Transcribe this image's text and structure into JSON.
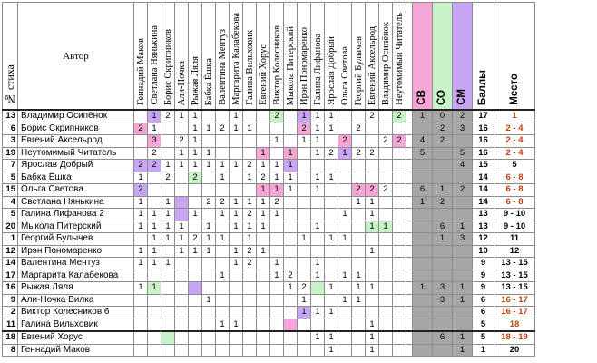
{
  "header": {
    "number_label": "№ стиха",
    "author_label": "Автор",
    "voters": [
      "Геннадий Маков",
      "Светлана Нянькина",
      "Борис Скрипников",
      "Али-Ночка",
      "Рыжая Ляля",
      "Бабка Ёшка",
      "Валентина Ментуз",
      "Маргарита Калабекова",
      "Галина Вильховик",
      "Евгений Хорус",
      "Виктор Колесников",
      "Мыкола Питерский",
      "Ирэн Пономаренко",
      "Галина Лифанова",
      "Ярослав Добрый",
      "Ольга Светова",
      "Георгий Булычев",
      "Евгений Аксельрод",
      "Владимир Осипёнок",
      "Неутомимый Читатель"
    ],
    "sv": "СВ",
    "so": "СО",
    "sm": "СМ",
    "score": "Баллы",
    "place": "Место"
  },
  "colors": {
    "pink": "#f6a6d6",
    "green": "#c8f2c8",
    "violet": "#c9a6f4",
    "grey": "#a6a6a6",
    "place_red": "#c2410c"
  },
  "rows": [
    {
      "num": "13",
      "author": "Владимир Осипёнок",
      "cells": [
        "",
        "1",
        "2",
        "1",
        "1",
        "",
        "",
        "1",
        "",
        "",
        "2",
        "",
        "1",
        "1",
        "1",
        "",
        "",
        "2",
        "",
        "2"
      ],
      "cc": [
        "",
        "v",
        "",
        "",
        "",
        "",
        "",
        "",
        "",
        "",
        "g",
        "",
        "v",
        "",
        "",
        "",
        "",
        "",
        "",
        "g"
      ],
      "sv": "1",
      "so": "0",
      "sm": "2",
      "score": "17",
      "place": "1",
      "red": true
    },
    {
      "num": "6",
      "author": "Борис Скрипников",
      "cells": [
        "2",
        "1",
        "",
        "",
        "1",
        "1",
        "2",
        "1",
        "1",
        "",
        "",
        "",
        "2",
        "1",
        "1",
        "",
        "2",
        "",
        "",
        ""
      ],
      "cc": [
        "p",
        "",
        "",
        "",
        "",
        "",
        "",
        "",
        "",
        "",
        "",
        "",
        "p",
        "",
        "",
        "",
        "",
        "",
        "",
        ""
      ],
      "sv": "",
      "so": "2",
      "sm": "3",
      "score": "16",
      "place": "2 - 4",
      "red": true
    },
    {
      "num": "3",
      "author": "Евгений Аксельрод",
      "cells": [
        "",
        "3",
        "",
        "2",
        "1",
        "",
        "",
        "",
        "",
        "",
        "1",
        "",
        "1",
        "1",
        "",
        "2",
        "",
        "",
        "2",
        "2"
      ],
      "cc": [
        "",
        "p",
        "",
        "",
        "",
        "",
        "",
        "",
        "",
        "",
        "",
        "",
        "",
        "",
        "",
        "p",
        "",
        "",
        "",
        "p"
      ],
      "sv": "4",
      "so": "2",
      "sm": "",
      "score": "16",
      "place": "2 - 4",
      "red": true
    },
    {
      "num": "19",
      "author": "Неутомимый Читатель",
      "cells": [
        "",
        "2",
        "",
        "1",
        "1",
        "1",
        "",
        "",
        "",
        "1",
        "",
        "1",
        "",
        "1",
        "2",
        "1",
        "2",
        "2",
        "",
        ""
      ],
      "cc": [
        "",
        "",
        "",
        "",
        "",
        "",
        "",
        "",
        "",
        "p",
        "",
        "p",
        "",
        "",
        "",
        "v",
        "",
        "",
        "",
        ""
      ],
      "sv": "5",
      "so": "",
      "sm": "5",
      "score": "16",
      "place": "2 - 4",
      "red": true
    },
    {
      "num": "7",
      "author": "Ярослав Добрый",
      "cells": [
        "2",
        "2",
        "1",
        "1",
        "1",
        "1",
        "1",
        "1",
        "2",
        "1",
        "1",
        "1",
        "",
        "",
        "",
        "",
        "",
        "",
        "",
        ""
      ],
      "cc": [
        "v",
        "v",
        "",
        "",
        "",
        "",
        "",
        "",
        "",
        "",
        "",
        "v",
        "",
        "",
        "",
        "",
        "",
        "",
        "",
        ""
      ],
      "sv": "",
      "so": "",
      "sm": "4",
      "score": "15",
      "place": "5",
      "red": false
    },
    {
      "num": "5",
      "author": "Бабка Ёшка",
      "cells": [
        "1",
        "",
        "2",
        "",
        "2",
        "",
        "1",
        "",
        "1",
        "2",
        "1",
        "1",
        "",
        "1",
        "1",
        "",
        "",
        "",
        "",
        ""
      ],
      "cc": [
        "",
        "",
        "",
        "",
        "g",
        "",
        "",
        "",
        "",
        "",
        "",
        "",
        "",
        "",
        "",
        "",
        "",
        "",
        "",
        ""
      ],
      "sv": "",
      "so": "",
      "sm": "",
      "score": "14",
      "place": "6 - 8",
      "red": true
    },
    {
      "num": "15",
      "author": "Ольга Светова",
      "cells": [
        "2",
        "",
        "",
        "",
        "",
        "",
        "",
        "",
        "",
        "1",
        "1",
        "1",
        "",
        "1",
        "",
        "",
        "2",
        "2",
        "2",
        ""
      ],
      "cc": [
        "v",
        "",
        "",
        "",
        "",
        "",
        "",
        "",
        "",
        "p",
        "p",
        "",
        "",
        "",
        "",
        "",
        "p",
        "p",
        "",
        ""
      ],
      "sv": "6",
      "so": "1",
      "sm": "2",
      "score": "14",
      "place": "6 - 8",
      "red": true
    },
    {
      "num": "4",
      "author": "Светлана Нянькина",
      "cells": [
        "1",
        "",
        "1",
        "",
        "",
        "2",
        "2",
        "1",
        "1",
        "1",
        "2",
        "",
        "",
        "",
        "",
        "",
        "1",
        "1",
        "",
        ""
      ],
      "cc": [
        "",
        "",
        "",
        "v",
        "",
        "",
        "",
        "",
        "",
        "",
        "",
        "",
        "",
        "",
        "",
        "",
        "",
        "",
        "",
        ""
      ],
      "sv": "1",
      "so": "2",
      "sm": "",
      "score": "14",
      "place": "6 - 8",
      "red": true
    },
    {
      "num": "5",
      "author": "Галина Лифанова 2",
      "cells": [
        "1",
        "1",
        "1",
        "",
        "1",
        "",
        "1",
        "1",
        "2",
        "1",
        "1",
        "",
        "",
        "",
        "",
        "1",
        "",
        "1",
        "",
        ""
      ],
      "cc": [
        "",
        "",
        "",
        "v",
        "",
        "",
        "",
        "",
        "",
        "",
        "",
        "",
        "",
        "",
        "",
        "",
        "",
        "",
        "",
        ""
      ],
      "sv": "",
      "so": "",
      "sm": "",
      "score": "13",
      "place": "9 - 10",
      "red": false
    },
    {
      "num": "20",
      "author": "Мыкола Питерский",
      "cells": [
        "1",
        "1",
        "1",
        "1",
        "",
        "1",
        "",
        "1",
        "1",
        "1",
        "",
        "",
        "",
        "1",
        "",
        "",
        "",
        "1",
        "1",
        ""
      ],
      "cc": [
        "",
        "",
        "",
        "",
        "",
        "",
        "",
        "",
        "",
        "",
        "",
        "",
        "",
        "",
        "",
        "",
        "",
        "g",
        "g",
        ""
      ],
      "sv": "",
      "so": "6",
      "sm": "1",
      "score": "13",
      "place": "9 - 10",
      "red": false
    },
    {
      "num": "1",
      "author": "Георгий Булычев",
      "cells": [
        "",
        "1",
        "1",
        "1",
        "2",
        "1",
        "1",
        "",
        "1",
        "",
        "",
        "",
        "1",
        "",
        "1",
        "1",
        "",
        "",
        "",
        ""
      ],
      "cc": [
        "",
        "",
        "",
        "",
        "",
        "",
        "",
        "",
        "",
        "",
        "",
        "",
        "",
        "",
        "",
        "",
        "",
        "",
        "",
        ""
      ],
      "sv": "",
      "so": "1",
      "sm": "3",
      "score": "12",
      "place": "11",
      "red": false
    },
    {
      "num": "12",
      "author": "Ирэн Пономаренко",
      "cells": [
        "1",
        "1",
        "",
        "1",
        "1",
        "1",
        "",
        "1",
        "2",
        "1",
        "",
        "",
        "",
        "",
        "",
        "",
        "",
        "1",
        "",
        ""
      ],
      "cc": [
        "",
        "",
        "",
        "",
        "",
        "",
        "",
        "",
        "",
        "",
        "",
        "",
        "",
        "",
        "",
        "",
        "",
        "",
        "",
        ""
      ],
      "sv": "",
      "so": "",
      "sm": "",
      "score": "10",
      "place": "12",
      "red": false
    },
    {
      "num": "14",
      "author": "Валентина Ментуз",
      "cells": [
        "1",
        "1",
        "1",
        "",
        "",
        "",
        "",
        "1",
        "2",
        "",
        "1",
        "",
        "",
        "1",
        "",
        "",
        "",
        "",
        "",
        ""
      ],
      "cc": [
        "",
        "",
        "",
        "",
        "",
        "",
        "",
        "",
        "",
        "",
        "",
        "",
        "",
        "",
        "",
        "",
        "",
        "",
        "",
        ""
      ],
      "sv": "",
      "so": "",
      "sm": "",
      "score": "9",
      "place": "13 - 15",
      "red": false
    },
    {
      "num": "17",
      "author": "Маргарита Калабекова",
      "cells": [
        "",
        "",
        "",
        "",
        "",
        "",
        "1",
        "",
        "",
        "",
        "1",
        "2",
        "",
        "1",
        "",
        "1",
        "1",
        "",
        "",
        ""
      ],
      "cc": [
        "",
        "",
        "",
        "",
        "",
        "",
        "",
        "",
        "",
        "",
        "",
        "",
        "",
        "",
        "",
        "",
        "",
        "",
        "",
        ""
      ],
      "sv": "",
      "so": "",
      "sm": "",
      "score": "9",
      "place": "13 - 15",
      "red": false
    },
    {
      "num": "16",
      "author": "Рыжая Ляля",
      "cells": [
        "1",
        "1",
        "",
        "",
        "",
        "",
        "",
        "",
        "",
        "",
        "",
        "1",
        "2",
        "",
        "1",
        "",
        "1",
        "1",
        "",
        ""
      ],
      "cc": [
        "",
        "g",
        "",
        "",
        "v",
        "",
        "",
        "",
        "",
        "",
        "",
        "",
        "",
        "g",
        "",
        "",
        "",
        "",
        "",
        ""
      ],
      "sv": "1",
      "so": "3",
      "sm": "1",
      "score": "9",
      "place": "13 - 15",
      "red": false
    },
    {
      "num": "9",
      "author": "Али-Ночка Вилка",
      "cells": [
        "",
        "",
        "",
        "",
        "",
        "1",
        "",
        "",
        "",
        "",
        "",
        "",
        "1",
        "",
        "",
        "1",
        "1",
        "",
        "",
        ""
      ],
      "cc": [
        "",
        "",
        "",
        "",
        "",
        "",
        "",
        "",
        "",
        "",
        "",
        "",
        "",
        "",
        "",
        "",
        "",
        "",
        "",
        ""
      ],
      "sv": "",
      "so": "3",
      "sm": "1",
      "score": "6",
      "place": "16 - 17",
      "red": true
    },
    {
      "num": "2",
      "author": "Виктор Колесников 6",
      "cells": [
        "",
        "",
        "",
        "",
        "",
        "",
        "",
        "",
        "",
        "",
        "",
        "",
        "1",
        "1",
        "1",
        "",
        "",
        "",
        "",
        ""
      ],
      "cc": [
        "",
        "",
        "",
        "",
        "",
        "",
        "",
        "",
        "",
        "",
        "",
        "",
        "v",
        "",
        "",
        "",
        "",
        "",
        "",
        ""
      ],
      "sv": "",
      "so": "",
      "sm": "",
      "score": "6",
      "place": "16 - 17",
      "red": true
    },
    {
      "num": "11",
      "author": "Галина Вильховик",
      "cells": [
        "",
        "",
        "",
        "",
        "",
        "",
        "1",
        "1",
        "",
        "",
        "",
        "",
        "",
        "",
        "",
        "",
        "",
        "1",
        "",
        ""
      ],
      "cc": [
        "",
        "",
        "",
        "",
        "",
        "",
        "",
        "",
        "",
        "",
        "",
        "p",
        "",
        "",
        "",
        "",
        "",
        "",
        "",
        ""
      ],
      "sv": "",
      "so": "",
      "sm": "",
      "score": "5",
      "place": "18",
      "red": true
    },
    {
      "num": "18",
      "author": "Евгений Хорус",
      "cells": [
        "",
        "",
        "",
        "",
        "",
        "",
        "",
        "",
        "",
        "",
        "",
        "",
        "",
        "1",
        "1",
        "",
        "",
        "1",
        "",
        ""
      ],
      "cc": [
        "",
        "",
        "g",
        "",
        "",
        "",
        "",
        "",
        "",
        "",
        "",
        "",
        "",
        "",
        "",
        "",
        "",
        "",
        "",
        ""
      ],
      "sv": "",
      "so": "6",
      "sm": "1",
      "score": "5",
      "place": "18 - 19",
      "red": true
    },
    {
      "num": "8",
      "author": "Геннадий Маков",
      "cells": [
        "",
        "",
        "",
        "",
        "",
        "",
        "",
        "",
        "",
        "",
        "",
        "",
        "",
        "",
        "1",
        "",
        "",
        "1",
        "",
        ""
      ],
      "cc": [
        "",
        "",
        "",
        "",
        "",
        "",
        "",
        "",
        "",
        "",
        "",
        "",
        "",
        "",
        "",
        "",
        "",
        "",
        "",
        ""
      ],
      "sv": "",
      "so": "",
      "sm": "1",
      "score": "1",
      "place": "20",
      "red": false
    }
  ]
}
